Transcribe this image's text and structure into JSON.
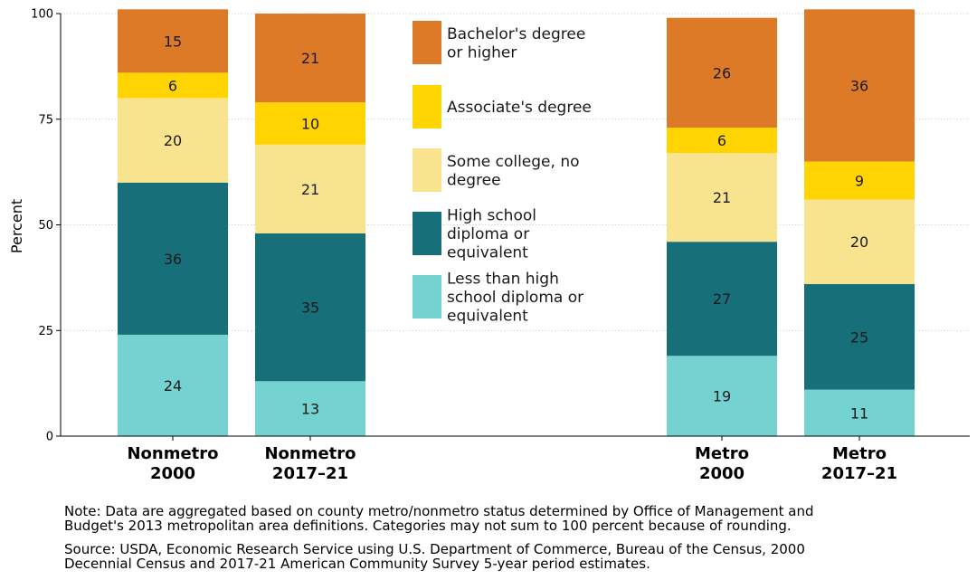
{
  "chart_data": {
    "type": "bar",
    "stacked": true,
    "ylabel": "Percent",
    "ylim": [
      0,
      100
    ],
    "yticks": [
      "0",
      "25",
      "50",
      "75",
      "100"
    ],
    "grid": "horizontal dotted",
    "legend_position": "top-center",
    "categories": [
      {
        "line1": "Nonmetro",
        "line2": "2000"
      },
      {
        "line1": "Nonmetro",
        "line2": "2017–21"
      },
      {
        "line1": "Metro",
        "line2": "2000"
      },
      {
        "line1": "Metro",
        "line2": "2017–21"
      }
    ],
    "series": [
      {
        "name": "Less than high school diploma or equivalent",
        "legend_lines": [
          "Less than high",
          "school diploma or",
          "equivalent"
        ],
        "color": "#74D2D1",
        "values": [
          24,
          13,
          19,
          11
        ]
      },
      {
        "name": "High school diploma or equivalent",
        "legend_lines": [
          "High school",
          "diploma or",
          "equivalent"
        ],
        "color": "#176F7A",
        "values": [
          36,
          35,
          27,
          25
        ]
      },
      {
        "name": "Some college, no degree",
        "legend_lines": [
          "Some college, no",
          "degree"
        ],
        "color": "#F8E48E",
        "values": [
          20,
          21,
          21,
          20
        ]
      },
      {
        "name": "Associate's degree",
        "legend_lines": [
          "Associate's degree"
        ],
        "color": "#FFD400",
        "values": [
          6,
          10,
          6,
          9
        ]
      },
      {
        "name": "Bachelor's degree or higher",
        "legend_lines": [
          "Bachelor's degree",
          "or higher"
        ],
        "color": "#DD7A27",
        "values": [
          15,
          21,
          26,
          36
        ]
      }
    ]
  },
  "notes": {
    "note_line1": "Note: Data are aggregated based on county metro/nonmetro status determined by Office of Management and",
    "note_line2": "Budget's 2013 metropolitan area definitions. Categories may not sum to 100 percent because of rounding.",
    "source_line1": "Source: USDA, Economic Research Service using U.S. Department of Commerce, Bureau of the Census, 2000",
    "source_line2": "Decennial Census and 2017-21 American Community Survey 5-year period estimates."
  }
}
